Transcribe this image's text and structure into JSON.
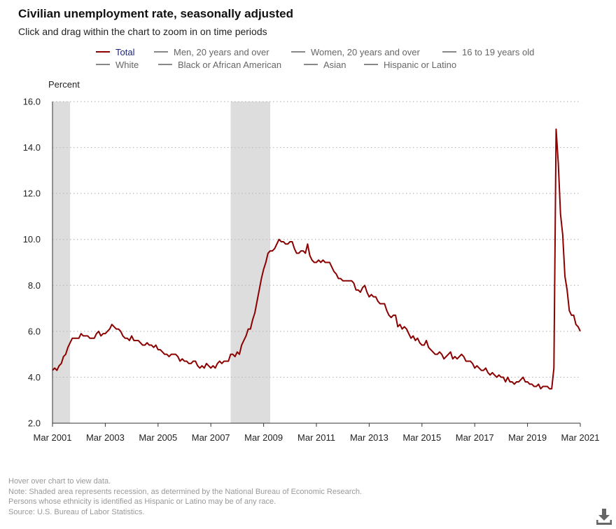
{
  "header": {
    "title": "Civilian unemployment rate, seasonally adjusted",
    "subtitle": "Click and drag within the chart to zoom in on time periods"
  },
  "legend": [
    {
      "label": "Total",
      "active": true
    },
    {
      "label": "Men, 20 years and over",
      "active": false
    },
    {
      "label": "Women, 20 years and over",
      "active": false
    },
    {
      "label": "16 to 19 years old",
      "active": false
    },
    {
      "label": "White",
      "active": false
    },
    {
      "label": "Black or African American",
      "active": false
    },
    {
      "label": "Asian",
      "active": false
    },
    {
      "label": "Hispanic or Latino",
      "active": false
    }
  ],
  "footnotes": {
    "hover": "Hover over chart to view data.",
    "note": "Note: Shaded area represents recession, as determined by the National Bureau of Economic Research.",
    "ethnicity": "Persons whose ethnicity is identified as Hispanic or Latino may be of any race.",
    "source": "Source: U.S. Bureau of Labor Statistics."
  },
  "icons": {
    "download": "download-icon"
  },
  "colors": {
    "total_line": "#8b0000",
    "recession_shade": "#dddddd",
    "grid": "#cccccc"
  },
  "chart_data": {
    "type": "line",
    "title": "Civilian unemployment rate, seasonally adjusted",
    "ylabel": "Percent",
    "ylim": [
      2.0,
      16.0
    ],
    "yticks": [
      "2.0",
      "4.0",
      "6.0",
      "8.0",
      "10.0",
      "12.0",
      "14.0",
      "16.0"
    ],
    "xlim": [
      "2001-03",
      "2021-03"
    ],
    "xticks": [
      "Mar 2001",
      "Mar 2003",
      "Mar 2005",
      "Mar 2007",
      "Mar 2009",
      "Mar 2011",
      "Mar 2013",
      "Mar 2015",
      "Mar 2017",
      "Mar 2019",
      "Mar 2021"
    ],
    "grid": "horizontal dotted",
    "legend_position": "top",
    "recessions": [
      {
        "start": "2001-03",
        "end": "2001-11"
      },
      {
        "start": "2007-12",
        "end": "2009-06"
      }
    ],
    "series": [
      {
        "name": "Total",
        "color": "#8b0000",
        "points": [
          [
            "2001-03",
            4.3
          ],
          [
            "2001-04",
            4.4
          ],
          [
            "2001-05",
            4.3
          ],
          [
            "2001-06",
            4.5
          ],
          [
            "2001-07",
            4.6
          ],
          [
            "2001-08",
            4.9
          ],
          [
            "2001-09",
            5.0
          ],
          [
            "2001-10",
            5.3
          ],
          [
            "2001-11",
            5.5
          ],
          [
            "2001-12",
            5.7
          ],
          [
            "2002-01",
            5.7
          ],
          [
            "2002-02",
            5.7
          ],
          [
            "2002-03",
            5.7
          ],
          [
            "2002-04",
            5.9
          ],
          [
            "2002-05",
            5.8
          ],
          [
            "2002-06",
            5.8
          ],
          [
            "2002-07",
            5.8
          ],
          [
            "2002-08",
            5.7
          ],
          [
            "2002-09",
            5.7
          ],
          [
            "2002-10",
            5.7
          ],
          [
            "2002-11",
            5.9
          ],
          [
            "2002-12",
            6.0
          ],
          [
            "2003-01",
            5.8
          ],
          [
            "2003-02",
            5.9
          ],
          [
            "2003-03",
            5.9
          ],
          [
            "2003-04",
            6.0
          ],
          [
            "2003-05",
            6.1
          ],
          [
            "2003-06",
            6.3
          ],
          [
            "2003-07",
            6.2
          ],
          [
            "2003-08",
            6.1
          ],
          [
            "2003-09",
            6.1
          ],
          [
            "2003-10",
            6.0
          ],
          [
            "2003-11",
            5.8
          ],
          [
            "2003-12",
            5.7
          ],
          [
            "2004-01",
            5.7
          ],
          [
            "2004-02",
            5.6
          ],
          [
            "2004-03",
            5.8
          ],
          [
            "2004-04",
            5.6
          ],
          [
            "2004-05",
            5.6
          ],
          [
            "2004-06",
            5.6
          ],
          [
            "2004-07",
            5.5
          ],
          [
            "2004-08",
            5.4
          ],
          [
            "2004-09",
            5.4
          ],
          [
            "2004-10",
            5.5
          ],
          [
            "2004-11",
            5.4
          ],
          [
            "2004-12",
            5.4
          ],
          [
            "2005-01",
            5.3
          ],
          [
            "2005-02",
            5.4
          ],
          [
            "2005-03",
            5.2
          ],
          [
            "2005-04",
            5.2
          ],
          [
            "2005-05",
            5.1
          ],
          [
            "2005-06",
            5.0
          ],
          [
            "2005-07",
            5.0
          ],
          [
            "2005-08",
            4.9
          ],
          [
            "2005-09",
            5.0
          ],
          [
            "2005-10",
            5.0
          ],
          [
            "2005-11",
            5.0
          ],
          [
            "2005-12",
            4.9
          ],
          [
            "2006-01",
            4.7
          ],
          [
            "2006-02",
            4.8
          ],
          [
            "2006-03",
            4.7
          ],
          [
            "2006-04",
            4.7
          ],
          [
            "2006-05",
            4.6
          ],
          [
            "2006-06",
            4.6
          ],
          [
            "2006-07",
            4.7
          ],
          [
            "2006-08",
            4.7
          ],
          [
            "2006-09",
            4.5
          ],
          [
            "2006-10",
            4.4
          ],
          [
            "2006-11",
            4.5
          ],
          [
            "2006-12",
            4.4
          ],
          [
            "2007-01",
            4.6
          ],
          [
            "2007-02",
            4.5
          ],
          [
            "2007-03",
            4.4
          ],
          [
            "2007-04",
            4.5
          ],
          [
            "2007-05",
            4.4
          ],
          [
            "2007-06",
            4.6
          ],
          [
            "2007-07",
            4.7
          ],
          [
            "2007-08",
            4.6
          ],
          [
            "2007-09",
            4.7
          ],
          [
            "2007-10",
            4.7
          ],
          [
            "2007-11",
            4.7
          ],
          [
            "2007-12",
            5.0
          ],
          [
            "2008-01",
            5.0
          ],
          [
            "2008-02",
            4.9
          ],
          [
            "2008-03",
            5.1
          ],
          [
            "2008-04",
            5.0
          ],
          [
            "2008-05",
            5.4
          ],
          [
            "2008-06",
            5.6
          ],
          [
            "2008-07",
            5.8
          ],
          [
            "2008-08",
            6.1
          ],
          [
            "2008-09",
            6.1
          ],
          [
            "2008-10",
            6.5
          ],
          [
            "2008-11",
            6.8
          ],
          [
            "2008-12",
            7.3
          ],
          [
            "2009-01",
            7.8
          ],
          [
            "2009-02",
            8.3
          ],
          [
            "2009-03",
            8.7
          ],
          [
            "2009-04",
            9.0
          ],
          [
            "2009-05",
            9.4
          ],
          [
            "2009-06",
            9.5
          ],
          [
            "2009-07",
            9.5
          ],
          [
            "2009-08",
            9.6
          ],
          [
            "2009-09",
            9.8
          ],
          [
            "2009-10",
            10.0
          ],
          [
            "2009-11",
            9.9
          ],
          [
            "2009-12",
            9.9
          ],
          [
            "2010-01",
            9.8
          ],
          [
            "2010-02",
            9.8
          ],
          [
            "2010-03",
            9.9
          ],
          [
            "2010-04",
            9.9
          ],
          [
            "2010-05",
            9.6
          ],
          [
            "2010-06",
            9.4
          ],
          [
            "2010-07",
            9.4
          ],
          [
            "2010-08",
            9.5
          ],
          [
            "2010-09",
            9.5
          ],
          [
            "2010-10",
            9.4
          ],
          [
            "2010-11",
            9.8
          ],
          [
            "2010-12",
            9.3
          ],
          [
            "2011-01",
            9.1
          ],
          [
            "2011-02",
            9.0
          ],
          [
            "2011-03",
            9.0
          ],
          [
            "2011-04",
            9.1
          ],
          [
            "2011-05",
            9.0
          ],
          [
            "2011-06",
            9.1
          ],
          [
            "2011-07",
            9.0
          ],
          [
            "2011-08",
            9.0
          ],
          [
            "2011-09",
            9.0
          ],
          [
            "2011-10",
            8.8
          ],
          [
            "2011-11",
            8.6
          ],
          [
            "2011-12",
            8.5
          ],
          [
            "2012-01",
            8.3
          ],
          [
            "2012-02",
            8.3
          ],
          [
            "2012-03",
            8.2
          ],
          [
            "2012-04",
            8.2
          ],
          [
            "2012-05",
            8.2
          ],
          [
            "2012-06",
            8.2
          ],
          [
            "2012-07",
            8.2
          ],
          [
            "2012-08",
            8.1
          ],
          [
            "2012-09",
            7.8
          ],
          [
            "2012-10",
            7.8
          ],
          [
            "2012-11",
            7.7
          ],
          [
            "2012-12",
            7.9
          ],
          [
            "2013-01",
            8.0
          ],
          [
            "2013-02",
            7.7
          ],
          [
            "2013-03",
            7.5
          ],
          [
            "2013-04",
            7.6
          ],
          [
            "2013-05",
            7.5
          ],
          [
            "2013-06",
            7.5
          ],
          [
            "2013-07",
            7.3
          ],
          [
            "2013-08",
            7.2
          ],
          [
            "2013-09",
            7.2
          ],
          [
            "2013-10",
            7.2
          ],
          [
            "2013-11",
            6.9
          ],
          [
            "2013-12",
            6.7
          ],
          [
            "2014-01",
            6.6
          ],
          [
            "2014-02",
            6.7
          ],
          [
            "2014-03",
            6.7
          ],
          [
            "2014-04",
            6.2
          ],
          [
            "2014-05",
            6.3
          ],
          [
            "2014-06",
            6.1
          ],
          [
            "2014-07",
            6.2
          ],
          [
            "2014-08",
            6.1
          ],
          [
            "2014-09",
            5.9
          ],
          [
            "2014-10",
            5.7
          ],
          [
            "2014-11",
            5.8
          ],
          [
            "2014-12",
            5.6
          ],
          [
            "2015-01",
            5.7
          ],
          [
            "2015-02",
            5.5
          ],
          [
            "2015-03",
            5.4
          ],
          [
            "2015-04",
            5.4
          ],
          [
            "2015-05",
            5.6
          ],
          [
            "2015-06",
            5.3
          ],
          [
            "2015-07",
            5.2
          ],
          [
            "2015-08",
            5.1
          ],
          [
            "2015-09",
            5.0
          ],
          [
            "2015-10",
            5.0
          ],
          [
            "2015-11",
            5.1
          ],
          [
            "2015-12",
            5.0
          ],
          [
            "2016-01",
            4.8
          ],
          [
            "2016-02",
            4.9
          ],
          [
            "2016-03",
            5.0
          ],
          [
            "2016-04",
            5.1
          ],
          [
            "2016-05",
            4.8
          ],
          [
            "2016-06",
            4.9
          ],
          [
            "2016-07",
            4.8
          ],
          [
            "2016-08",
            4.9
          ],
          [
            "2016-09",
            5.0
          ],
          [
            "2016-10",
            4.9
          ],
          [
            "2016-11",
            4.7
          ],
          [
            "2016-12",
            4.7
          ],
          [
            "2017-01",
            4.7
          ],
          [
            "2017-02",
            4.6
          ],
          [
            "2017-03",
            4.4
          ],
          [
            "2017-04",
            4.5
          ],
          [
            "2017-05",
            4.4
          ],
          [
            "2017-06",
            4.3
          ],
          [
            "2017-07",
            4.3
          ],
          [
            "2017-08",
            4.4
          ],
          [
            "2017-09",
            4.2
          ],
          [
            "2017-10",
            4.1
          ],
          [
            "2017-11",
            4.2
          ],
          [
            "2017-12",
            4.1
          ],
          [
            "2018-01",
            4.0
          ],
          [
            "2018-02",
            4.1
          ],
          [
            "2018-03",
            4.0
          ],
          [
            "2018-04",
            4.0
          ],
          [
            "2018-05",
            3.8
          ],
          [
            "2018-06",
            4.0
          ],
          [
            "2018-07",
            3.8
          ],
          [
            "2018-08",
            3.8
          ],
          [
            "2018-09",
            3.7
          ],
          [
            "2018-10",
            3.8
          ],
          [
            "2018-11",
            3.8
          ],
          [
            "2018-12",
            3.9
          ],
          [
            "2019-01",
            4.0
          ],
          [
            "2019-02",
            3.8
          ],
          [
            "2019-03",
            3.8
          ],
          [
            "2019-04",
            3.7
          ],
          [
            "2019-05",
            3.7
          ],
          [
            "2019-06",
            3.6
          ],
          [
            "2019-07",
            3.6
          ],
          [
            "2019-08",
            3.7
          ],
          [
            "2019-09",
            3.5
          ],
          [
            "2019-10",
            3.6
          ],
          [
            "2019-11",
            3.6
          ],
          [
            "2019-12",
            3.6
          ],
          [
            "2020-01",
            3.5
          ],
          [
            "2020-02",
            3.5
          ],
          [
            "2020-03",
            4.4
          ],
          [
            "2020-04",
            14.8
          ],
          [
            "2020-05",
            13.3
          ],
          [
            "2020-06",
            11.1
          ],
          [
            "2020-07",
            10.2
          ],
          [
            "2020-08",
            8.4
          ],
          [
            "2020-09",
            7.8
          ],
          [
            "2020-10",
            6.9
          ],
          [
            "2020-11",
            6.7
          ],
          [
            "2020-12",
            6.7
          ],
          [
            "2021-01",
            6.3
          ],
          [
            "2021-02",
            6.2
          ],
          [
            "2021-03",
            6.0
          ]
        ]
      }
    ]
  }
}
